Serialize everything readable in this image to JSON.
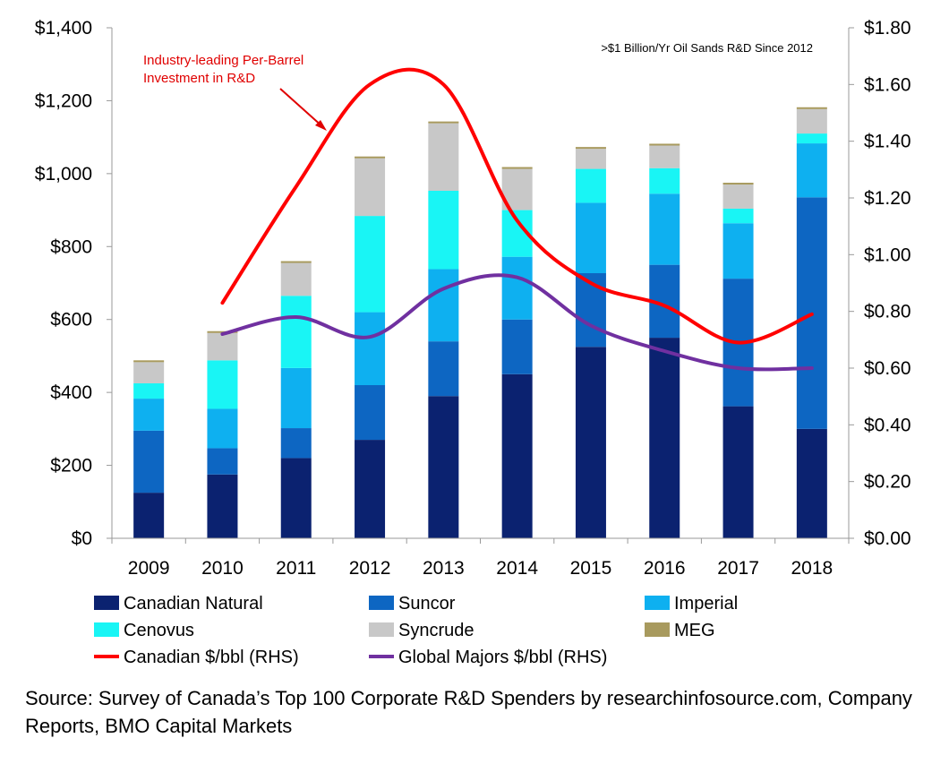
{
  "chart_data": {
    "type": "bar",
    "stacked": true,
    "categories": [
      "2009",
      "2010",
      "2011",
      "2012",
      "2013",
      "2014",
      "2015",
      "2016",
      "2017",
      "2018"
    ],
    "series": [
      {
        "name": "Canadian Natural",
        "color": "#0b2270",
        "values": [
          125,
          175,
          220,
          270,
          390,
          450,
          525,
          550,
          362,
          300
        ]
      },
      {
        "name": "Suncor",
        "color": "#0d66c2",
        "values": [
          170,
          72,
          82,
          150,
          150,
          150,
          202,
          200,
          350,
          635
        ]
      },
      {
        "name": "Imperial",
        "color": "#0eb0f0",
        "values": [
          88,
          108,
          165,
          200,
          198,
          172,
          193,
          195,
          152,
          148
        ]
      },
      {
        "name": "Cenovus",
        "color": "#19f5f5",
        "values": [
          42,
          133,
          198,
          264,
          215,
          128,
          93,
          70,
          40,
          27
        ]
      },
      {
        "name": "Syncrude",
        "color": "#c8c8c8",
        "values": [
          58,
          75,
          90,
          158,
          185,
          113,
          55,
          62,
          66,
          67
        ]
      },
      {
        "name": "MEG",
        "color": "#a89a5e",
        "values": [
          5,
          5,
          5,
          5,
          5,
          5,
          5,
          5,
          5,
          5
        ]
      }
    ],
    "lines": [
      {
        "name": "Canadian $/bbl (RHS)",
        "color": "#ff0000",
        "axis": "right",
        "x": [
          "2010",
          "2011",
          "2012",
          "2013",
          "2014",
          "2015",
          "2016",
          "2017",
          "2018"
        ],
        "values": [
          0.83,
          1.24,
          1.6,
          1.6,
          1.12,
          0.9,
          0.82,
          0.69,
          0.79
        ]
      },
      {
        "name": "Global Majors $/bbl (RHS)",
        "color": "#7030a0",
        "axis": "right",
        "x": [
          "2010",
          "2011",
          "2012",
          "2013",
          "2014",
          "2015",
          "2016",
          "2017",
          "2018"
        ],
        "values": [
          0.72,
          0.78,
          0.71,
          0.88,
          0.92,
          0.75,
          0.66,
          0.6,
          0.6
        ]
      }
    ],
    "y_left": {
      "min": 0,
      "max": 1400,
      "step": 200,
      "ticks": [
        "$0",
        "$200",
        "$400",
        "$600",
        "$800",
        "$1,000",
        "$1,200",
        "$1,400"
      ]
    },
    "y_right": {
      "min": 0,
      "max": 1.8,
      "step": 0.2,
      "ticks": [
        "$0.00",
        "$0.20",
        "$0.40",
        "$0.60",
        "$0.80",
        "$1.00",
        "$1.20",
        "$1.40",
        "$1.60",
        "$1.80"
      ]
    },
    "annotation_top_right": ">$1 Billion/Yr Oil Sands R&D Since 2012",
    "callout": {
      "line1": "Industry-leading Per-Barrel",
      "line2": "Investment in R&D",
      "color": "#e00000"
    },
    "grid": false,
    "legend_position": "bottom"
  },
  "source_text": "Source: Survey of Canada’s Top 100 Corporate R&D Spenders by researchinfosource.com, Company Reports, BMO Capital Markets"
}
